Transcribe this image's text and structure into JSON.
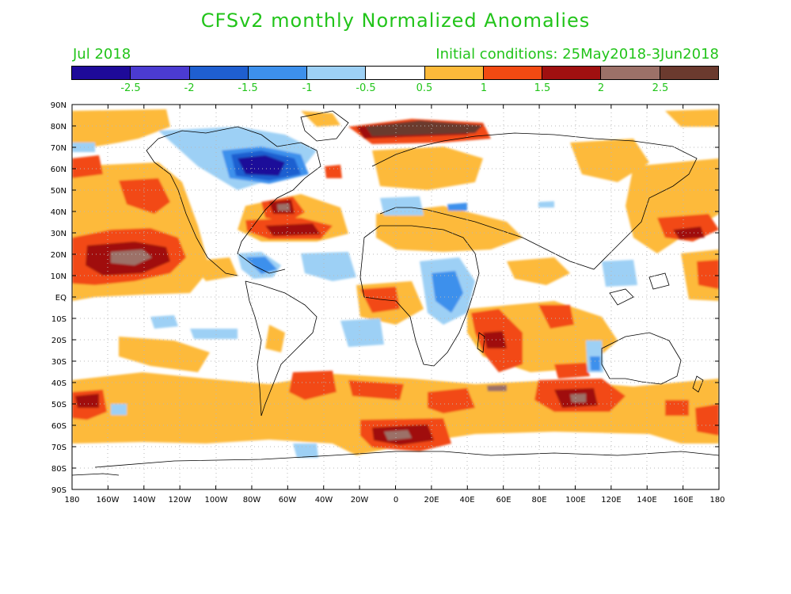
{
  "title": "CFSv2 monthly Normalized Anomalies",
  "subtitle_left": "Jul 2018",
  "subtitle_right": "Initial conditions: 25May2018-3Jun2018",
  "colorbar": {
    "colors": [
      "#1e0a99",
      "#4b3bd1",
      "#1f5fd0",
      "#3d90ec",
      "#9dd0f5",
      "#ffffff",
      "#fdba3a",
      "#f24a12",
      "#a01010",
      "#9c7168",
      "#6b3a2e"
    ],
    "labels": [
      "-2.5",
      "-2",
      "-1.5",
      "-1",
      "-0.5",
      "0.5",
      "1",
      "1.5",
      "2",
      "2.5"
    ]
  },
  "lat_labels": [
    "90N",
    "80N",
    "70N",
    "60N",
    "50N",
    "40N",
    "30N",
    "20N",
    "10N",
    "EQ",
    "10S",
    "20S",
    "30S",
    "40S",
    "50S",
    "60S",
    "70S",
    "80S",
    "90S"
  ],
  "lon_labels": [
    "180",
    "160W",
    "140W",
    "120W",
    "100W",
    "80W",
    "60W",
    "40W",
    "20W",
    "0",
    "20E",
    "40E",
    "60E",
    "80E",
    "100E",
    "120E",
    "140E",
    "160E",
    "180"
  ]
}
